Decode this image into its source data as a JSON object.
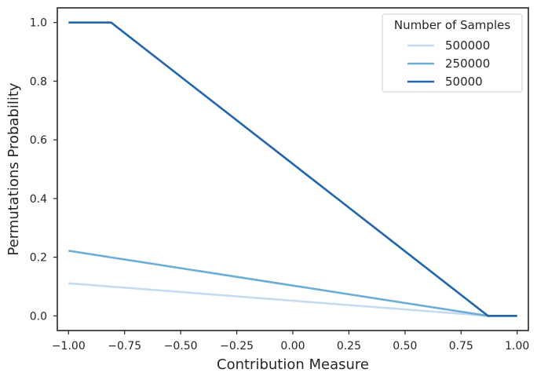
{
  "chart_data": {
    "type": "line",
    "xlabel": "Contribution Measure",
    "ylabel": "Permutations Probability",
    "xlim": [
      -1.05,
      1.05
    ],
    "ylim": [
      -0.05,
      1.05
    ],
    "xticks": [
      -1.0,
      -0.75,
      -0.5,
      -0.25,
      0.0,
      0.25,
      0.5,
      0.75,
      1.0
    ],
    "xtick_labels": [
      "−1.00",
      "−0.75",
      "−0.50",
      "−0.25",
      "0.00",
      "0.25",
      "0.50",
      "0.75",
      "1.00"
    ],
    "yticks": [
      0.0,
      0.2,
      0.4,
      0.6,
      0.8,
      1.0
    ],
    "ytick_labels": [
      "0.0",
      "0.2",
      "0.4",
      "0.6",
      "0.8",
      "1.0"
    ],
    "grid": false,
    "legend": {
      "title": "Number of Samples",
      "placement": "top-right"
    },
    "series": [
      {
        "name": "500000",
        "color": "#c6dbef",
        "x": [
          -1.0,
          0.87,
          1.0
        ],
        "y": [
          0.111,
          0.0,
          0.0
        ]
      },
      {
        "name": "250000",
        "color": "#6baed6",
        "x": [
          -1.0,
          0.87,
          1.0
        ],
        "y": [
          0.222,
          0.0,
          0.0
        ]
      },
      {
        "name": "50000",
        "color": "#2166ac",
        "x": [
          -1.0,
          -0.81,
          0.87,
          1.0
        ],
        "y": [
          1.0,
          1.0,
          0.0,
          0.0
        ]
      }
    ]
  }
}
